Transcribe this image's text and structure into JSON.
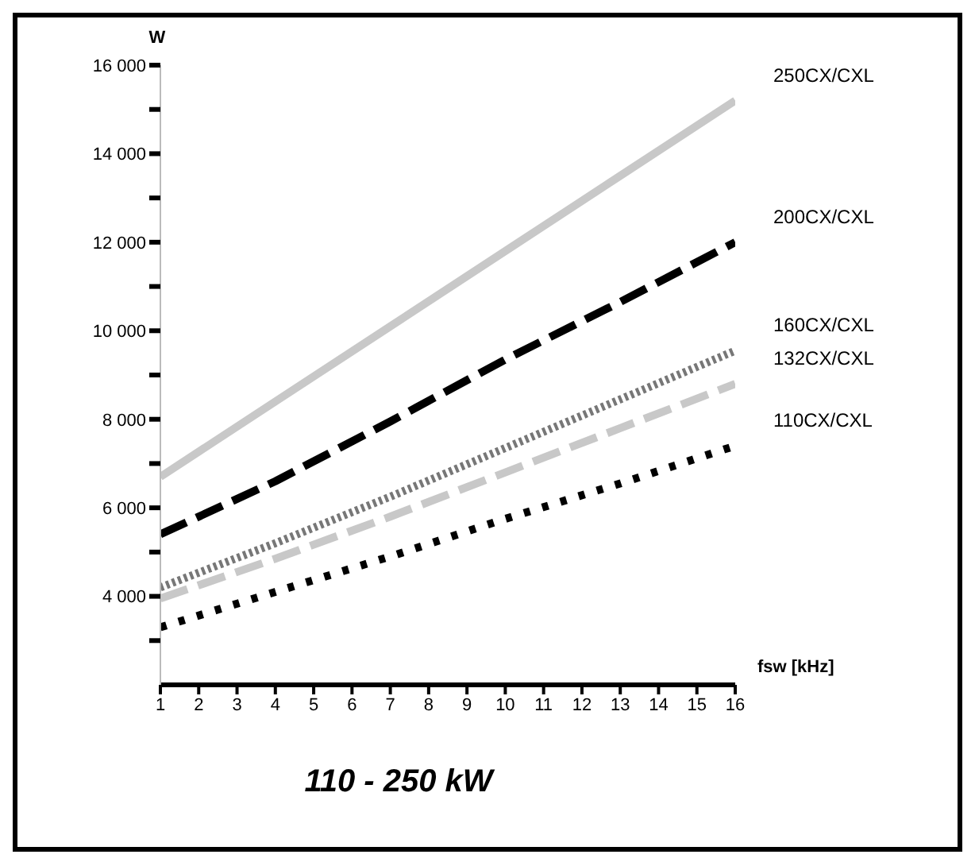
{
  "chart_data": {
    "type": "line",
    "title": "110 - 250 kW",
    "xlabel": "fsw [kHz]",
    "ylabel": "W",
    "x": [
      1,
      4,
      7,
      10,
      13,
      16
    ],
    "series": [
      {
        "name": "250CX/CXL",
        "color": "#c8c8c8",
        "line_style": "solid",
        "values": [
          6700,
          8400,
          10100,
          11800,
          13500,
          15200
        ]
      },
      {
        "name": "200CX/CXL",
        "color": "#000000",
        "line_style": "dashed",
        "values": [
          5400,
          6600,
          7950,
          9350,
          10650,
          12000
        ]
      },
      {
        "name": "160CX/CXL",
        "color": "#777777",
        "line_style": "dotted",
        "values": [
          4200,
          5200,
          6250,
          7350,
          8450,
          9550
        ]
      },
      {
        "name": "132CX/CXL",
        "color": "#c8c8c8",
        "line_style": "dashed",
        "values": [
          3950,
          4850,
          5800,
          6800,
          7800,
          8800
        ]
      },
      {
        "name": "110CX/CXL",
        "color": "#000000",
        "line_style": "dotted",
        "values": [
          3300,
          4100,
          4900,
          5750,
          6550,
          7400
        ]
      }
    ],
    "xlim": [
      1,
      16
    ],
    "xticks": [
      1,
      2,
      3,
      4,
      5,
      6,
      7,
      8,
      9,
      10,
      11,
      12,
      13,
      14,
      15,
      16
    ],
    "ylim": [
      2000,
      16000
    ],
    "yticks": [
      {
        "value": 3000,
        "label": null
      },
      {
        "value": 4000,
        "label": "4 000"
      },
      {
        "value": 5000,
        "label": null
      },
      {
        "value": 6000,
        "label": "6 000"
      },
      {
        "value": 7000,
        "label": null
      },
      {
        "value": 8000,
        "label": "8 000"
      },
      {
        "value": 9000,
        "label": null
      },
      {
        "value": 10000,
        "label": "10 000"
      },
      {
        "value": 11000,
        "label": null
      },
      {
        "value": 12000,
        "label": "12 000"
      },
      {
        "value": 13000,
        "label": null
      },
      {
        "value": 14000,
        "label": "14 000"
      },
      {
        "value": 15000,
        "label": null
      },
      {
        "value": 16000,
        "label": "16 000"
      }
    ],
    "grid": false,
    "legend": false,
    "marker": "none"
  }
}
